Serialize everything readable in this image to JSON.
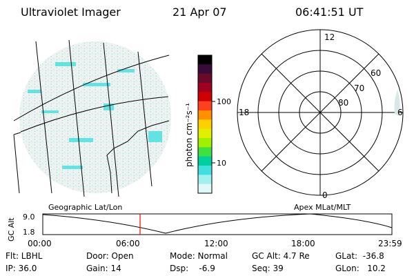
{
  "header": {
    "instrument": "Ultraviolet Imager",
    "date": "21 Apr 07",
    "time": "06:41:51 UT"
  },
  "colorbar": {
    "unit_label": "photon cm⁻²s⁻¹",
    "ticks": [
      "100",
      "10"
    ],
    "colors": [
      "#000000",
      "#3a0a3a",
      "#6a0a2a",
      "#a00020",
      "#d00000",
      "#ff4020",
      "#ff9000",
      "#ffd000",
      "#e0f000",
      "#a0f000",
      "#40e040",
      "#00d0a0",
      "#40e0e0",
      "#a0f0f0",
      "#e0f8f8"
    ]
  },
  "polar_plot": {
    "mlt_labels": [
      "12",
      "18",
      "6",
      "0"
    ],
    "mlat_labels": [
      "60",
      "70",
      "80"
    ]
  },
  "timeline": {
    "left_label": "Geographic Lat/Lon",
    "right_label": "Apex  MLat/MLT",
    "axis_label": "GC Alt",
    "y_ticks": [
      "9.0",
      "1.8"
    ],
    "x_ticks": [
      "00:00",
      "06:00",
      "12:00",
      "18:00",
      "23:59"
    ],
    "current_time_marker_color": "#ff0000"
  },
  "info": {
    "flt": "Flt: LBHL",
    "ip": "IP: 36.0",
    "door": "Door: Open",
    "gain": "Gain: 14",
    "mode": "Mode: Normal",
    "dsp": "Dsp:    -6.9",
    "gc_alt": "GC Alt: 4.7 Re",
    "seq": "Seq: 39",
    "glat": "GLat:  -36.8",
    "glon": "GLon:   10.2"
  }
}
